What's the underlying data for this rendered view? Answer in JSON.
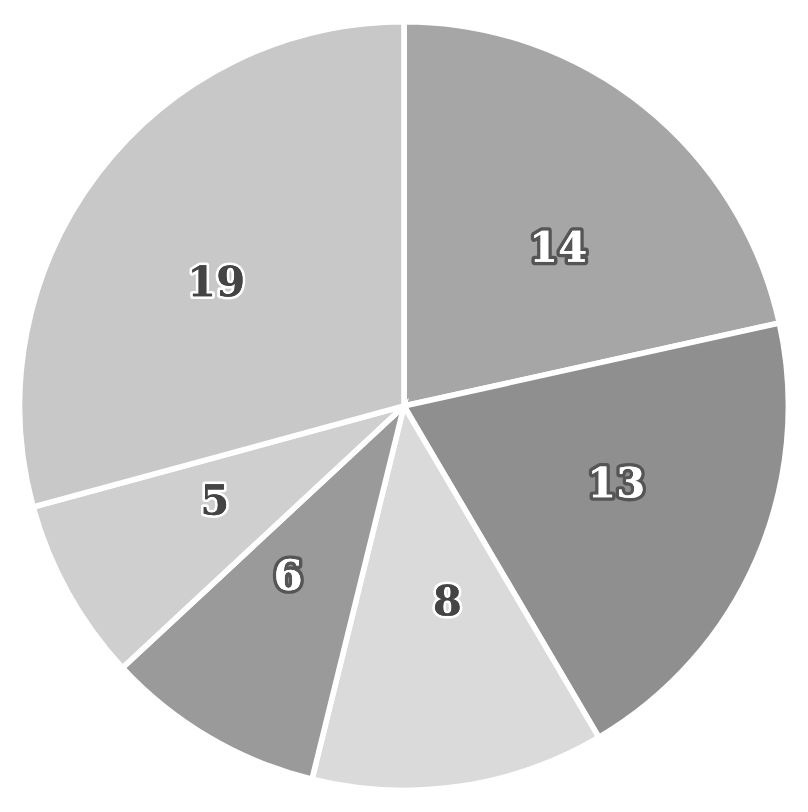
{
  "chart_data": {
    "type": "pie",
    "categories": [
      null,
      null,
      null,
      null,
      null,
      null
    ],
    "values": [
      14,
      13,
      8,
      6,
      5,
      19
    ],
    "colors": [
      "#a6a6a6",
      "#8f8f8f",
      "#dadada",
      "#9a9a9a",
      "#cfcfcf",
      "#c8c8c8"
    ],
    "data_labels": true
  }
}
